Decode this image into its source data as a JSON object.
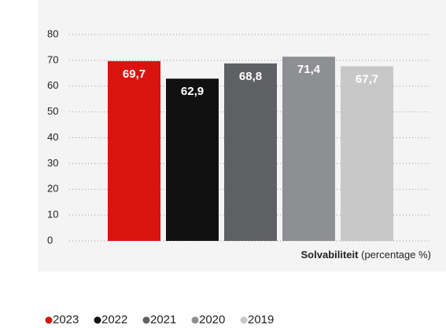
{
  "chart_data": {
    "type": "bar",
    "axis_title_bold": "Solvabiliteit",
    "axis_title": "(percentage %)",
    "categories": [
      "2023",
      "2022",
      "2021",
      "2020",
      "2019"
    ],
    "values": [
      69.7,
      62.9,
      68.8,
      71.4,
      67.7
    ],
    "value_labels": [
      "69,7",
      "62,9",
      "68,8",
      "71,4",
      "67,7"
    ],
    "colors": [
      "#d9140e",
      "#111111",
      "#5f6063",
      "#8e8f92",
      "#c8c8c8"
    ],
    "ylim": [
      0,
      80
    ],
    "yticks": [
      0,
      10,
      20,
      30,
      40,
      50,
      60,
      70,
      80
    ],
    "grid": true
  }
}
